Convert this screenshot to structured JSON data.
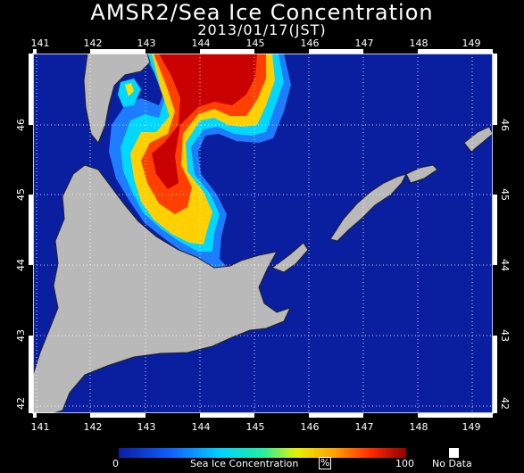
{
  "title": "AMSR2/Sea Ice Concentration",
  "date": "2013/01/17(JST)",
  "map": {
    "lon_labels": [
      "141",
      "142",
      "143",
      "144",
      "145",
      "146",
      "147",
      "148",
      "149"
    ],
    "lat_labels": [
      "46",
      "45",
      "44",
      "43",
      "42"
    ],
    "colors": {
      "ocean": "#0a1ea0",
      "land": "#b9b9b9",
      "ice_low": "#1e6cff",
      "ice_mid": "#00e0ff",
      "ice_high": "#ffd200",
      "ice_full": "#9b0000"
    }
  },
  "colorbar": {
    "min_label": "0",
    "label": "Sea Ice Concentration",
    "unit": "%",
    "max_label": "100",
    "nodata_label": "No Data"
  }
}
